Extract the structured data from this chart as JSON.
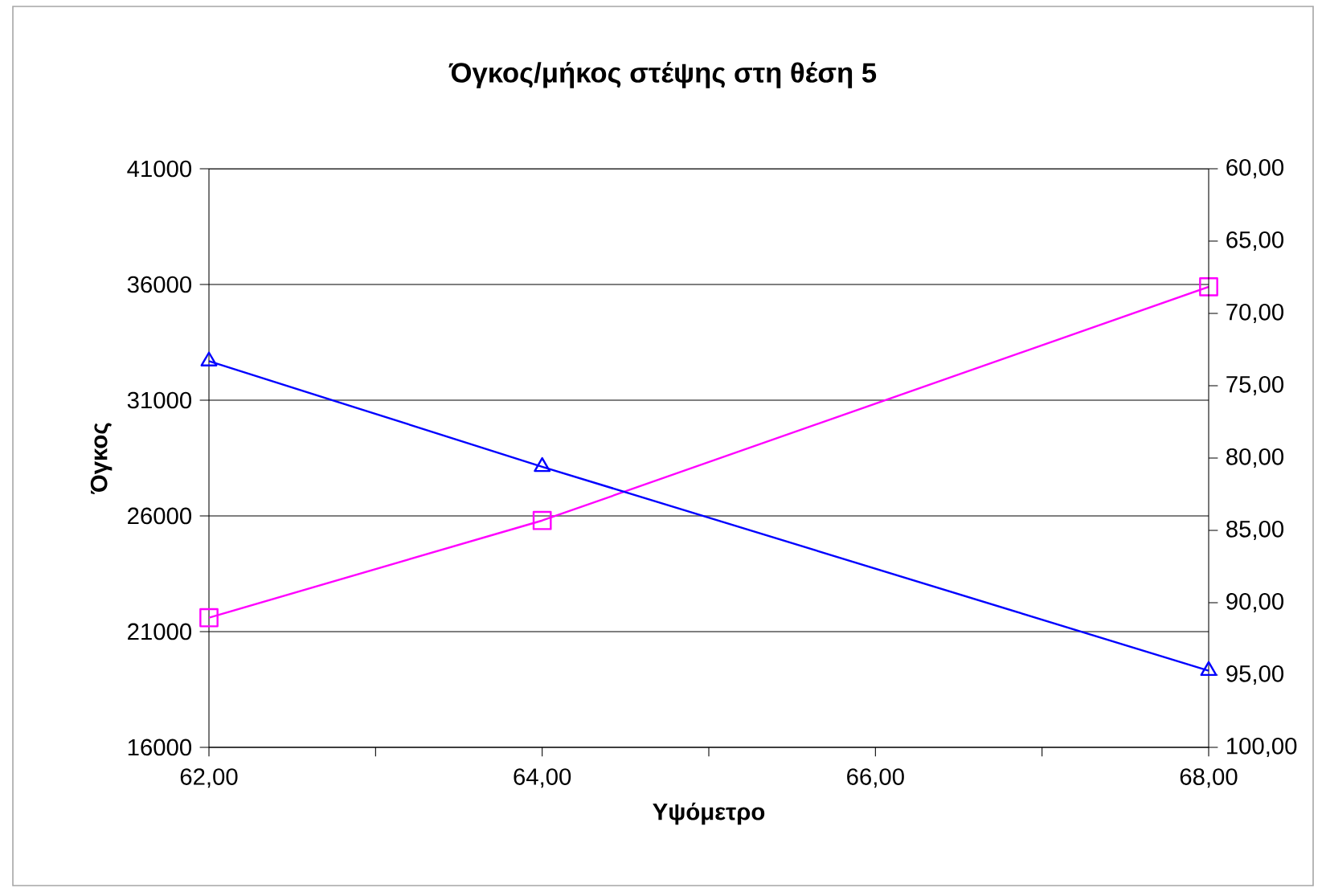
{
  "chart_data": {
    "type": "line",
    "title": "Όγκος/μήκος στέψης στη θέση 5",
    "xlabel": "Υψόμετρο",
    "ylabel": "Όγκος",
    "x": [
      62,
      64,
      68
    ],
    "series": [
      {
        "color": "#ff00ff",
        "values": [
          21600,
          25800,
          35900
        ],
        "marker": "square"
      },
      {
        "color": "#0000ff",
        "values": [
          73.3,
          80.6,
          94.7
        ],
        "marker": "triangle",
        "axis": "y2"
      }
    ],
    "xlim": [
      62,
      68
    ],
    "xticks": [
      {
        "value": 62,
        "label": "62,00"
      },
      {
        "value": 63,
        "label": null
      },
      {
        "value": 64,
        "label": "64,00"
      },
      {
        "value": 65,
        "label": null
      },
      {
        "value": 66,
        "label": "66,00"
      },
      {
        "value": 67,
        "label": null
      },
      {
        "value": 68,
        "label": "68,00"
      }
    ],
    "ylim": [
      16000,
      41000
    ],
    "yticks": [
      16000,
      21000,
      26000,
      31000,
      36000,
      41000
    ],
    "y2lim": [
      100,
      60
    ],
    "y2ticks": [
      {
        "value": 60,
        "label": "60,00"
      },
      {
        "value": 65,
        "label": "65,00"
      },
      {
        "value": 70,
        "label": "70,00"
      },
      {
        "value": 75,
        "label": "75,00"
      },
      {
        "value": 80,
        "label": "80,00"
      },
      {
        "value": 85,
        "label": "85,00"
      },
      {
        "value": 90,
        "label": "90,00"
      },
      {
        "value": 95,
        "label": "95,00"
      },
      {
        "value": 100,
        "label": "100,00"
      }
    ],
    "grid": "y",
    "line_style": "solid"
  }
}
